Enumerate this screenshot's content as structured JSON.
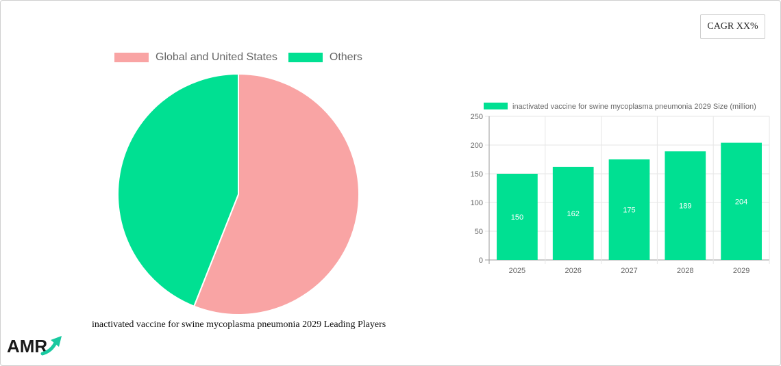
{
  "cagr_label": "CAGR XX%",
  "colors": {
    "pink": "#f9a4a4",
    "green": "#00e092",
    "grid": "#e6e6e6",
    "axis": "#666666"
  },
  "logo": {
    "text": "AMR",
    "icon": "arrow-up-right-icon"
  },
  "chart_data": [
    {
      "type": "pie",
      "title": "inactivated vaccine for swine mycoplasma pneumonia 2029 Leading Players",
      "legend_position": "top",
      "slices": [
        {
          "label": "Global and United States",
          "value": 56,
          "color": "#f9a4a4"
        },
        {
          "label": "Others",
          "value": 44,
          "color": "#00e092"
        }
      ]
    },
    {
      "type": "bar",
      "legend_position": "top",
      "categories": [
        "2025",
        "2026",
        "2027",
        "2028",
        "2029"
      ],
      "series": [
        {
          "name": "inactivated vaccine for swine mycoplasma pneumonia 2029 Size (million)",
          "values": [
            150,
            162,
            175,
            189,
            204
          ],
          "color": "#00e092"
        }
      ],
      "ylim": [
        0,
        250
      ],
      "yticks": [
        0,
        50,
        100,
        150,
        200,
        250
      ],
      "grid": true,
      "data_labels": true
    }
  ]
}
